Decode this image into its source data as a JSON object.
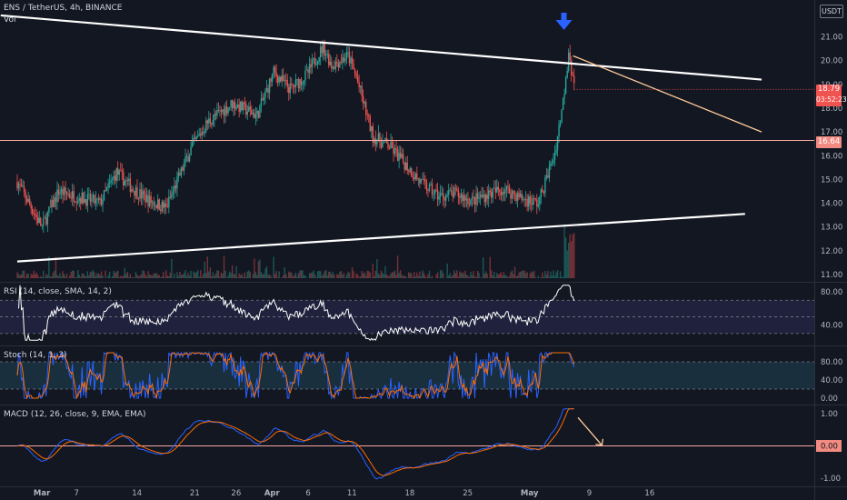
{
  "header": {
    "symbol_line": "ENS / TetherUS, 4h, BINANCE",
    "volume_label": "Vol",
    "currency_button": "USDT"
  },
  "price_axis": {
    "ticks": [
      "21.00",
      "20.00",
      "19.00",
      "18.00",
      "17.00",
      "16.00",
      "15.00",
      "14.00",
      "13.00",
      "12.00",
      "11.00"
    ],
    "last_price": "18.79",
    "countdown": "03:52:23",
    "level_price": "16.64"
  },
  "indicators": {
    "rsi": {
      "label": "RSI (14, close, SMA, 14, 2)",
      "ticks": [
        "80.00",
        "40.00"
      ]
    },
    "stoch": {
      "label": "Stoch (14, 1, 3)",
      "ticks": [
        "80.00",
        "40.00",
        "0.00"
      ]
    },
    "macd": {
      "label": "MACD (12, 26, close, 9, EMA, EMA)",
      "ticks": [
        "1.00",
        "0.00",
        "-1.00"
      ]
    }
  },
  "time_axis": {
    "labels": [
      "Mar",
      "7",
      "14",
      "21",
      "26",
      "Apr",
      "6",
      "11",
      "18",
      "25",
      "May",
      "9",
      "16"
    ]
  },
  "colors": {
    "background": "#131722",
    "bull": "#26a69a",
    "bear": "#ef5350",
    "level_line": "#f7a7a0",
    "trendline": "#ffffff",
    "projection": "#ffcc99",
    "arrow": "#2962ff",
    "macd_line": "#2962ff",
    "signal_line": "#ff6d00"
  },
  "chart_data": {
    "type": "candlestick",
    "title": "ENS / TetherUS, 4h, BINANCE",
    "x": [
      "Mar",
      "7",
      "14",
      "21",
      "26",
      "Apr",
      "6",
      "11",
      "18",
      "25",
      "May",
      "9",
      "16"
    ],
    "ylim": [
      11,
      21.5
    ],
    "price_path": [
      [
        0,
        14.9
      ],
      [
        3,
        13.0
      ],
      [
        5,
        14.5
      ],
      [
        8,
        14.2
      ],
      [
        10,
        14.0
      ],
      [
        12,
        15.3
      ],
      [
        14,
        14.6
      ],
      [
        16,
        14.1
      ],
      [
        18,
        13.8
      ],
      [
        21,
        16.3
      ],
      [
        23,
        17.4
      ],
      [
        26,
        18.2
      ],
      [
        29,
        17.7
      ],
      [
        31,
        19.5
      ],
      [
        33,
        18.8
      ],
      [
        35,
        19.4
      ],
      [
        37,
        20.6
      ],
      [
        38,
        19.8
      ],
      [
        40,
        20.2
      ],
      [
        41,
        19.3
      ],
      [
        43,
        16.8
      ],
      [
        45,
        16.4
      ],
      [
        47,
        15.6
      ],
      [
        49,
        14.8
      ],
      [
        51,
        14.3
      ],
      [
        53,
        14.4
      ],
      [
        55,
        14.1
      ],
      [
        57,
        14.4
      ],
      [
        59,
        14.6
      ],
      [
        61,
        14.2
      ],
      [
        63,
        14.0
      ],
      [
        65,
        16.1
      ],
      [
        66,
        18.3
      ],
      [
        66.7,
        20.4
      ],
      [
        67.3,
        18.79
      ]
    ],
    "horizontal_level": 16.64,
    "upper_trendline": {
      "start": [
        -2,
        21.9
      ],
      "end": [
        90,
        19.2
      ]
    },
    "lower_trendline": {
      "start": [
        0,
        11.55
      ],
      "end": [
        88,
        13.55
      ]
    },
    "projection_line": {
      "start": [
        67.2,
        20.2
      ],
      "end": [
        90,
        17.0
      ]
    },
    "annotation": "down-arrow",
    "last_price": 18.79,
    "indicators": {
      "rsi": {
        "ylim": [
          20,
          90
        ],
        "levels": [
          70,
          50,
          30
        ],
        "last": 73
      },
      "stoch": {
        "ylim": [
          -10,
          110
        ],
        "levels": [
          80,
          20
        ],
        "last": 82
      },
      "macd": {
        "ylim": [
          -1.2,
          1.2
        ],
        "last_macd": 0.95,
        "last_signal": 0.45
      }
    }
  }
}
